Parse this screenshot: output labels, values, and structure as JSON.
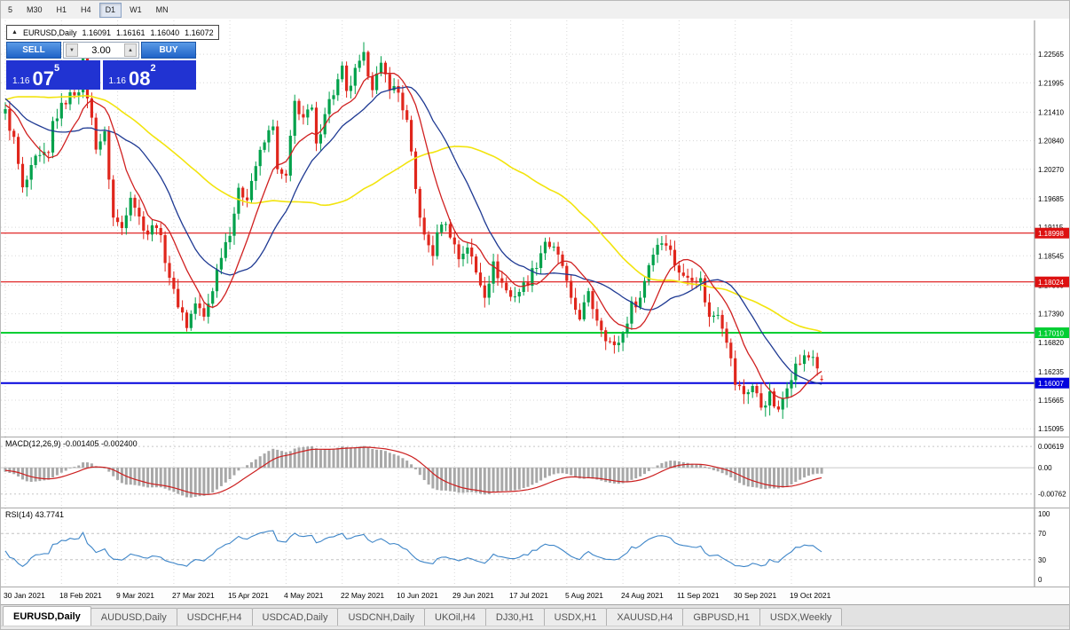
{
  "toolbar": {
    "timeframes": [
      {
        "label": "5",
        "active": false
      },
      {
        "label": "M30",
        "active": false
      },
      {
        "label": "H1",
        "active": false
      },
      {
        "label": "H4",
        "active": false
      },
      {
        "label": "D1",
        "active": true
      },
      {
        "label": "W1",
        "active": false
      },
      {
        "label": "MN",
        "active": false
      }
    ]
  },
  "chart_header": {
    "collapse_icon": "▲",
    "symbol": "EURUSD,Daily",
    "open": "1.16091",
    "high": "1.16161",
    "low": "1.16040",
    "close": "1.16072"
  },
  "trade_panel": {
    "sell_label": "SELL",
    "buy_label": "BUY",
    "volume": "3.00",
    "volume_down_icon": "▼",
    "volume_up_icon": "▲",
    "sell_price": {
      "prefix": "1.16",
      "big": "07",
      "sup": "5"
    },
    "buy_price": {
      "prefix": "1.16",
      "big": "08",
      "sup": "2"
    }
  },
  "indicators": {
    "macd": {
      "label": "MACD(12,26,9) -0.001405 -0.002400",
      "fast": 12,
      "slow": 26,
      "signal": 9,
      "main_value": -0.001405,
      "signal_value": -0.0024,
      "axis_labels": [
        {
          "value": 0.00619,
          "text": "0.00619"
        },
        {
          "value": 0,
          "text": "0.00"
        },
        {
          "value": -0.00762,
          "text": "-0.00762"
        }
      ]
    },
    "rsi": {
      "label": "RSI(14) 43.7741",
      "period": 14,
      "value": 43.7741,
      "levels": [
        70,
        30
      ],
      "axis_labels": [
        {
          "value": 100,
          "text": "100"
        },
        {
          "value": 70,
          "text": "70"
        },
        {
          "value": 30,
          "text": "30"
        },
        {
          "value": 0,
          "text": "0"
        }
      ]
    }
  },
  "chart_data": {
    "type": "candlestick",
    "title": "EURUSD,Daily",
    "current_ohlc": [
      1.16091,
      1.16161,
      1.1604,
      1.16072
    ],
    "y_ticks": [
      1.22565,
      1.21995,
      1.2141,
      1.2084,
      1.2027,
      1.19685,
      1.19115,
      1.18545,
      1.1796,
      1.1739,
      1.1682,
      1.16235,
      1.15665,
      1.15095
    ],
    "x_labels": [
      "30 Jan 2021",
      "18 Feb 2021",
      "9 Mar 2021",
      "27 Mar 2021",
      "15 Apr 2021",
      "4 May 2021",
      "22 May 2021",
      "10 Jun 2021",
      "29 Jun 2021",
      "17 Jul 2021",
      "5 Aug 2021",
      "24 Aug 2021",
      "11 Sep 2021",
      "30 Sep 2021",
      "19 Oct 2021"
    ],
    "x_label_step": 13,
    "candle_count": 190,
    "price_range": [
      1.1494,
      1.2324
    ],
    "hlines": [
      {
        "price": 1.18998,
        "label": "1.18998",
        "color_key": "hline_red",
        "width": 1.2
      },
      {
        "price": 1.18024,
        "label": "1.18024",
        "color_key": "hline_red",
        "width": 1.2
      },
      {
        "price": 1.1701,
        "label": "1.17010",
        "color_key": "hline_green",
        "width": 2
      },
      {
        "price": 1.16007,
        "label": "1.16007",
        "color_key": "hline_blue",
        "width": 2
      }
    ],
    "moving_averages": [
      {
        "period": 55,
        "color_key": "ma_slow_yellow",
        "width": 1.6
      },
      {
        "period": 21,
        "color_key": "ma_mid_blue",
        "width": 1.3
      },
      {
        "period": 10,
        "color_key": "ma_fast_red",
        "width": 1.3
      }
    ],
    "close_waypoints": [
      [
        -60,
        1.185
      ],
      [
        -45,
        1.21
      ],
      [
        -30,
        1.225
      ],
      [
        -22,
        1.233
      ],
      [
        -15,
        1.214
      ],
      [
        -8,
        1.2165
      ],
      [
        0,
        1.214
      ],
      [
        2,
        1.2085
      ],
      [
        4,
        1.1985
      ],
      [
        7,
        1.2045
      ],
      [
        10,
        1.2055
      ],
      [
        11,
        1.212
      ],
      [
        14,
        1.2165
      ],
      [
        17,
        1.219
      ],
      [
        18,
        1.224
      ],
      [
        19,
        1.2175
      ],
      [
        21,
        1.2075
      ],
      [
        23,
        1.2095
      ],
      [
        25,
        1.193
      ],
      [
        27,
        1.191
      ],
      [
        29,
        1.198
      ],
      [
        31,
        1.193
      ],
      [
        33,
        1.19
      ],
      [
        35,
        1.192
      ],
      [
        37,
        1.185
      ],
      [
        39,
        1.178
      ],
      [
        41,
        1.174
      ],
      [
        42,
        1.1715
      ],
      [
        44,
        1.176
      ],
      [
        46,
        1.173
      ],
      [
        48,
        1.179
      ],
      [
        50,
        1.186
      ],
      [
        52,
        1.1905
      ],
      [
        54,
        1.198
      ],
      [
        56,
        1.1975
      ],
      [
        58,
        1.2035
      ],
      [
        60,
        1.208
      ],
      [
        62,
        1.212
      ],
      [
        63,
        1.202
      ],
      [
        65,
        1.201
      ],
      [
        67,
        1.216
      ],
      [
        69,
        1.213
      ],
      [
        71,
        1.2145
      ],
      [
        72,
        1.207
      ],
      [
        74,
        1.2145
      ],
      [
        76,
        1.218
      ],
      [
        78,
        1.2225
      ],
      [
        79,
        1.2175
      ],
      [
        81,
        1.222
      ],
      [
        83,
        1.225
      ],
      [
        85,
        1.2195
      ],
      [
        87,
        1.223
      ],
      [
        89,
        1.2195
      ],
      [
        91,
        1.218
      ],
      [
        93,
        1.212
      ],
      [
        95,
        1.1985
      ],
      [
        97,
        1.189
      ],
      [
        99,
        1.186
      ],
      [
        101,
        1.1925
      ],
      [
        103,
        1.19
      ],
      [
        105,
        1.185
      ],
      [
        107,
        1.1875
      ],
      [
        109,
        1.182
      ],
      [
        111,
        1.178
      ],
      [
        113,
        1.1835
      ],
      [
        115,
        1.18
      ],
      [
        117,
        1.1772
      ],
      [
        119,
        1.1785
      ],
      [
        121,
        1.1805
      ],
      [
        123,
        1.184
      ],
      [
        125,
        1.1885
      ],
      [
        127,
        1.1865
      ],
      [
        129,
        1.1835
      ],
      [
        131,
        1.176
      ],
      [
        133,
        1.1735
      ],
      [
        135,
        1.1775
      ],
      [
        137,
        1.173
      ],
      [
        139,
        1.1695
      ],
      [
        141,
        1.167
      ],
      [
        143,
        1.17
      ],
      [
        145,
        1.1755
      ],
      [
        147,
        1.177
      ],
      [
        149,
        1.184
      ],
      [
        151,
        1.188
      ],
      [
        153,
        1.1885
      ],
      [
        155,
        1.184
      ],
      [
        157,
        1.181
      ],
      [
        159,
        1.1815
      ],
      [
        161,
        1.1805
      ],
      [
        163,
        1.173
      ],
      [
        165,
        1.1745
      ],
      [
        167,
        1.169
      ],
      [
        169,
        1.16
      ],
      [
        171,
        1.158
      ],
      [
        173,
        1.1595
      ],
      [
        175,
        1.1555
      ],
      [
        177,
        1.1575
      ],
      [
        179,
        1.154
      ],
      [
        181,
        1.16
      ],
      [
        183,
        1.1635
      ],
      [
        185,
        1.165
      ],
      [
        187,
        1.1655
      ],
      [
        188,
        1.163
      ],
      [
        189,
        1.1607
      ]
    ]
  },
  "bottom_tabs": {
    "tabs": [
      {
        "label": "EURUSD,Daily",
        "active": true
      },
      {
        "label": "AUDUSD,Daily",
        "active": false
      },
      {
        "label": "USDCHF,H4",
        "active": false
      },
      {
        "label": "USDCAD,Daily",
        "active": false
      },
      {
        "label": "USDCNH,Daily",
        "active": false
      },
      {
        "label": "UKOil,H4",
        "active": false
      },
      {
        "label": "DJ30,H1",
        "active": false
      },
      {
        "label": "USDX,H1",
        "active": false
      },
      {
        "label": "XAUUSD,H4",
        "active": false
      },
      {
        "label": "GBPUSD,H1",
        "active": false
      },
      {
        "label": "USDX,Weekly",
        "active": false
      }
    ]
  },
  "colors": {
    "up": "#00a14b",
    "down": "#e0261c",
    "ma_fast_red": "#d02020",
    "ma_mid_blue": "#1f3a93",
    "ma_slow_yellow": "#f2e40e",
    "hline_red": "#dd1111",
    "hline_green": "#00ce33",
    "hline_blue": "#0202dd",
    "macd_hist": "#a8a8a8",
    "macd_signal": "#cc2020",
    "rsi_line": "#3d85c8",
    "grid": "#d8d8d8",
    "axis_text": "#000000",
    "panel_bg": "#ffffff"
  }
}
